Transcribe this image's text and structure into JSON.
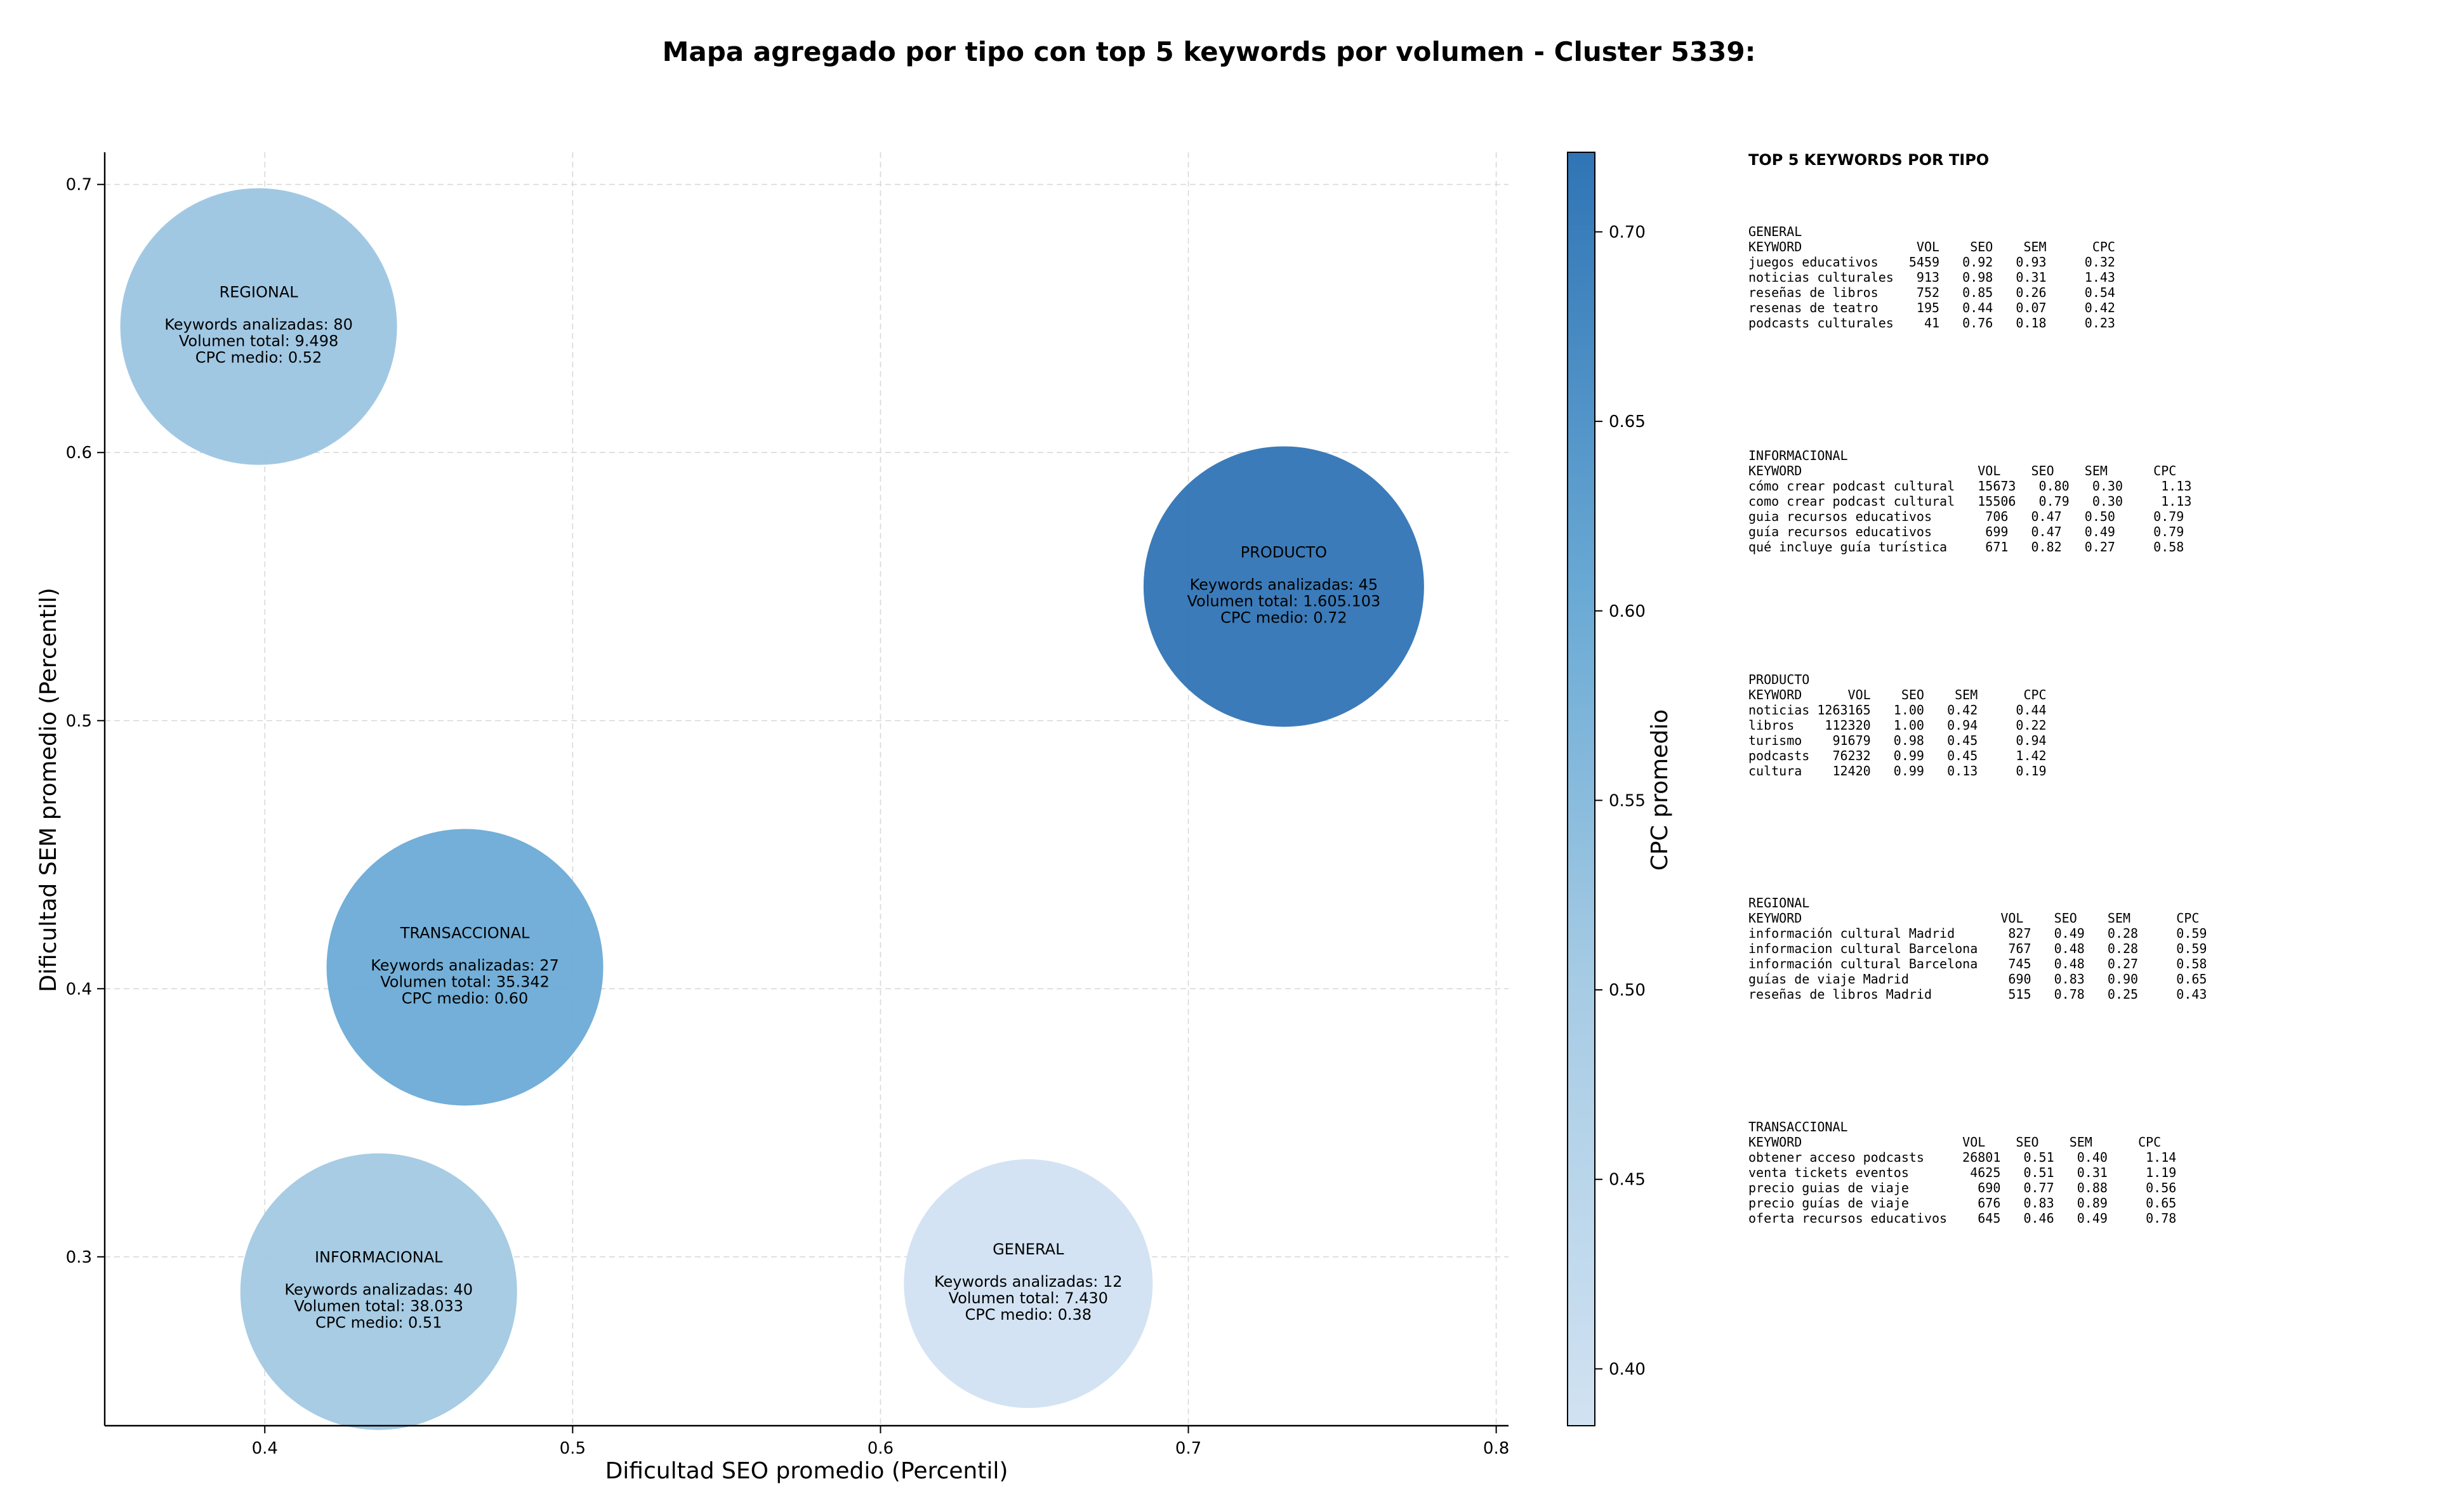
{
  "chart_data": {
    "type": "scatter",
    "title": "Mapa agregado por tipo con top 5 keywords por volumen - Cluster 5339:",
    "xlabel": "Dificultad SEO promedio (Percentil)",
    "ylabel": "Dificultad SEM promedio (Percentil)",
    "xlim": [
      0.348,
      0.804
    ],
    "ylim": [
      0.237,
      0.712
    ],
    "xticks": [
      "0.4",
      "0.5",
      "0.6",
      "0.7",
      "0.8"
    ],
    "yticks": [
      "0.3",
      "0.4",
      "0.5",
      "0.6",
      "0.7"
    ],
    "grid": true,
    "colorbar": {
      "label": "CPC promedio",
      "range": [
        0.385,
        0.721
      ],
      "ticks": [
        "0.40",
        "0.45",
        "0.50",
        "0.55",
        "0.60",
        "0.65",
        "0.70"
      ],
      "colormap": "Blues"
    },
    "points": [
      {
        "name": "REGIONAL",
        "x": 0.398,
        "y": 0.647,
        "cpc": 0.52,
        "lines": [
          "Keywords analizadas: 80",
          "Volumen total: 9.498",
          "CPC medio: 0.52"
        ]
      },
      {
        "name": "PRODUCTO",
        "x": 0.731,
        "y": 0.55,
        "cpc": 0.72,
        "lines": [
          "Keywords analizadas: 45",
          "Volumen total: 1.605.103",
          "CPC medio: 0.72"
        ]
      },
      {
        "name": "TRANSACCIONAL",
        "x": 0.465,
        "y": 0.408,
        "cpc": 0.6,
        "lines": [
          "Keywords analizadas: 27",
          "Volumen total: 35.342",
          "CPC medio: 0.60"
        ]
      },
      {
        "name": "INFORMACIONAL",
        "x": 0.437,
        "y": 0.287,
        "cpc": 0.51,
        "lines": [
          "Keywords analizadas: 40",
          "Volumen total: 38.033",
          "CPC medio: 0.51"
        ]
      },
      {
        "name": "GENERAL",
        "x": 0.648,
        "y": 0.29,
        "cpc": 0.38,
        "lines": [
          "Keywords analizadas: 12",
          "Volumen total: 7.430",
          "CPC medio: 0.38"
        ]
      }
    ]
  },
  "side_panel": {
    "heading": "TOP 5 KEYWORDS POR TIPO",
    "blocks": [
      {
        "lines": [
          "GENERAL",
          "KEYWORD               VOL    SEO    SEM      CPC",
          "juegos educativos    5459   0.92   0.93     0.32",
          "noticias culturales   913   0.98   0.31     1.43",
          "reseñas de libros     752   0.85   0.26     0.54",
          "resenas de teatro     195   0.44   0.07     0.42",
          "podcasts culturales    41   0.76   0.18     0.23"
        ]
      },
      {
        "lines": [
          "INFORMACIONAL",
          "KEYWORD                       VOL    SEO    SEM      CPC",
          "cómo crear podcast cultural   15673   0.80   0.30     1.13",
          "como crear podcast cultural   15506   0.79   0.30     1.13",
          "guia recursos educativos       706   0.47   0.50     0.79",
          "guía recursos educativos       699   0.47   0.49     0.79",
          "qué incluye guía turística     671   0.82   0.27     0.58"
        ]
      },
      {
        "lines": [
          "PRODUCTO",
          "KEYWORD      VOL    SEO    SEM      CPC",
          "noticias 1263165   1.00   0.42     0.44",
          "libros    112320   1.00   0.94     0.22",
          "turismo    91679   0.98   0.45     0.94",
          "podcasts   76232   0.99   0.45     1.42",
          "cultura    12420   0.99   0.13     0.19"
        ]
      },
      {
        "lines": [
          "REGIONAL",
          "KEYWORD                          VOL    SEO    SEM      CPC",
          "información cultural Madrid       827   0.49   0.28     0.59",
          "informacion cultural Barcelona    767   0.48   0.28     0.59",
          "información cultural Barcelona    745   0.48   0.27     0.58",
          "guías de viaje Madrid             690   0.83   0.90     0.65",
          "reseñas de libros Madrid          515   0.78   0.25     0.43"
        ]
      },
      {
        "lines": [
          "TRANSACCIONAL",
          "KEYWORD                     VOL    SEO    SEM      CPC",
          "obtener acceso podcasts     26801   0.51   0.40     1.14",
          "venta tickets eventos        4625   0.51   0.31     1.19",
          "precio guias de viaje         690   0.77   0.88     0.56",
          "precio guías de viaje         676   0.83   0.89     0.65",
          "oferta recursos educativos    645   0.46   0.49     0.78"
        ]
      }
    ]
  }
}
